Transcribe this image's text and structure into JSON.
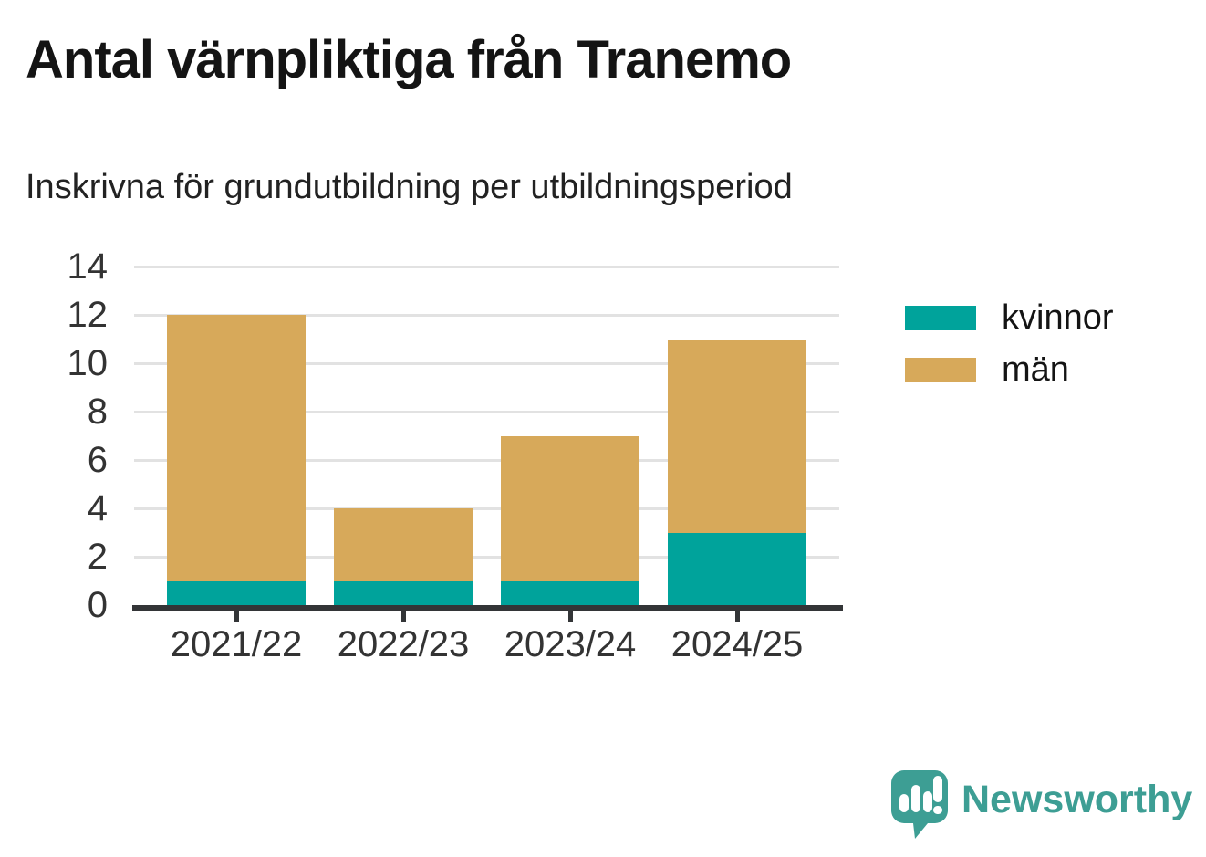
{
  "header": {
    "title": "Antal värnpliktiga från Tranemo",
    "subtitle": "Inskrivna för grundutbildning per utbildningsperiod"
  },
  "chart_data": {
    "type": "bar",
    "stacked": true,
    "title": "Antal värnpliktiga från Tranemo",
    "subtitle": "Inskrivna för grundutbildning per utbildningsperiod",
    "categories": [
      "2021/22",
      "2022/23",
      "2023/24",
      "2024/25"
    ],
    "series": [
      {
        "name": "kvinnor",
        "color": "#00a39b",
        "values": [
          1,
          1,
          1,
          3
        ]
      },
      {
        "name": "män",
        "color": "#d7a95a",
        "values": [
          11,
          3,
          6,
          8
        ]
      }
    ],
    "totals": [
      12,
      4,
      7,
      11
    ],
    "xlabel": "",
    "ylabel": "",
    "ylim": [
      0,
      14
    ],
    "yticks": [
      0,
      2,
      4,
      6,
      8,
      10,
      12,
      14
    ],
    "grid": true,
    "legend_position": "right",
    "colors": {
      "axis": "#333537",
      "gridline": "#e2e2e2",
      "tick_text": "#333333"
    }
  },
  "branding": {
    "logo_text": "Newsworthy",
    "logo_color": "#3d9e94"
  }
}
